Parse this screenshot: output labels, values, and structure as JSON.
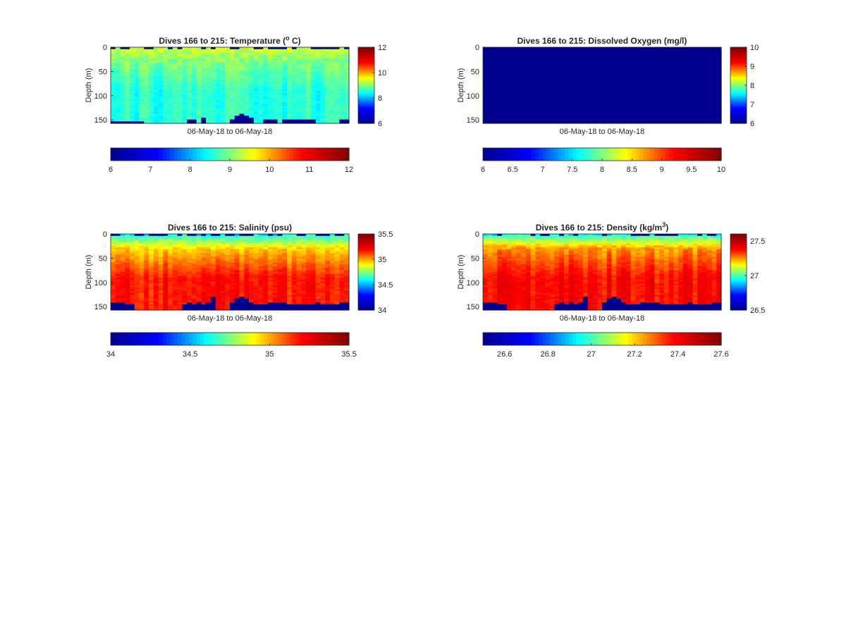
{
  "figure": {
    "colormap": [
      "#00008f",
      "#0000ff",
      "#00ffff",
      "#ffff00",
      "#ff0000",
      "#800000"
    ]
  },
  "chart_data": [
    {
      "type": "heatmap",
      "panel": "temperature",
      "title_main": "Dives 166 to 215: Temperature (",
      "title_sup": "o",
      "title_tail": " C)",
      "xlabel": "06-May-18 to 06-May-18",
      "ylabel": "Depth (m)",
      "ylim": [
        0,
        157
      ],
      "yticks": [
        "0",
        "50",
        "100",
        "150"
      ],
      "yticks_values": [
        0,
        50,
        100,
        150
      ],
      "clim": [
        6,
        12
      ],
      "side_colorbar_ticks": [
        "6",
        "8",
        "10",
        "12"
      ],
      "side_colorbar_values": [
        6,
        8,
        10,
        12
      ],
      "bottom_colorbar_ticks": [
        "6",
        "7",
        "8",
        "9",
        "10",
        "11",
        "12"
      ],
      "bottom_colorbar_values": [
        6,
        7,
        8,
        9,
        10,
        11,
        12
      ],
      "dives": 50,
      "surface_value": 9.4,
      "upper_value": 9.0,
      "lower_value": 8.6,
      "bottom_depths": [
        152,
        152,
        152,
        152,
        152,
        152,
        152,
        157,
        157,
        157,
        157,
        157,
        157,
        157,
        157,
        157,
        151,
        151,
        157,
        145,
        157,
        157,
        157,
        157,
        157,
        151,
        140,
        137,
        140,
        147,
        157,
        157,
        151,
        151,
        151,
        157,
        151,
        151,
        151,
        151,
        151,
        151,
        151,
        157,
        157,
        157,
        157,
        157,
        151,
        151
      ]
    },
    {
      "type": "heatmap",
      "panel": "oxygen",
      "title_main": "Dives 166 to 215: Dissolved Oxygen (mg/l)",
      "title_sup": "",
      "title_tail": "",
      "xlabel": "06-May-18 to 06-May-18",
      "ylabel": "Depth (m)",
      "ylim": [
        0,
        157
      ],
      "yticks": [
        "0",
        "50",
        "100",
        "150"
      ],
      "yticks_values": [
        0,
        50,
        100,
        150
      ],
      "clim": [
        6,
        10
      ],
      "side_colorbar_ticks": [
        "6",
        "7",
        "8",
        "9",
        "10"
      ],
      "side_colorbar_values": [
        6,
        7,
        8,
        9,
        10
      ],
      "bottom_colorbar_ticks": [
        "6",
        "6.5",
        "7",
        "7.5",
        "8",
        "8.5",
        "9",
        "9.5",
        "10"
      ],
      "bottom_colorbar_values": [
        6,
        6.5,
        7,
        7.5,
        8,
        8.5,
        9,
        9.5,
        10
      ],
      "dives": 50,
      "uniform_value": 6.0
    },
    {
      "type": "heatmap",
      "panel": "salinity",
      "title_main": "Dives 166 to 215: Salinity (psu)",
      "title_sup": "",
      "title_tail": "",
      "xlabel": "06-May-18 to 06-May-18",
      "ylabel": "Depth (m)",
      "ylim": [
        0,
        157
      ],
      "yticks": [
        "0",
        "50",
        "100",
        "150"
      ],
      "yticks_values": [
        0,
        50,
        100,
        150
      ],
      "clim": [
        34,
        35.5
      ],
      "side_colorbar_ticks": [
        "34",
        "34.5",
        "35",
        "35.5"
      ],
      "side_colorbar_values": [
        34,
        34.5,
        35,
        35.5
      ],
      "bottom_colorbar_ticks": [
        "34",
        "34.5",
        "35",
        "35.5"
      ],
      "bottom_colorbar_values": [
        34,
        34.5,
        35,
        35.5
      ],
      "dives": 50,
      "surface_value": 34.6,
      "upper_value": 34.95,
      "lower_value": 35.18,
      "bottom_depths": [
        143,
        143,
        143,
        147,
        147,
        157,
        157,
        157,
        157,
        157,
        157,
        157,
        157,
        157,
        157,
        147,
        143,
        147,
        143,
        147,
        143,
        131,
        157,
        157,
        157,
        143,
        135,
        131,
        135,
        143,
        147,
        147,
        147,
        143,
        143,
        143,
        140,
        147,
        147,
        147,
        147,
        147,
        147,
        143,
        147,
        147,
        147,
        147,
        143,
        143
      ]
    },
    {
      "type": "heatmap",
      "panel": "density",
      "title_main": "Dives 166 to 215: Density (kg/m",
      "title_sup": "3",
      "title_tail": ")",
      "xlabel": "06-May-18 to 06-May-18",
      "ylabel": "Depth (m)",
      "ylim": [
        0,
        157
      ],
      "yticks": [
        "0",
        "50",
        "100",
        "150"
      ],
      "yticks_values": [
        0,
        50,
        100,
        150
      ],
      "clim": [
        26.5,
        27.6
      ],
      "side_colorbar_ticks": [
        "26.5",
        "27",
        "27.5"
      ],
      "side_colorbar_values": [
        26.5,
        27,
        27.5
      ],
      "bottom_colorbar_ticks": [
        "26.6",
        "26.8",
        "27",
        "27.2",
        "27.4",
        "27.6"
      ],
      "bottom_colorbar_values": [
        26.6,
        26.8,
        27,
        27.2,
        27.4,
        27.6
      ],
      "dives": 50,
      "surface_value": 26.95,
      "upper_value": 27.25,
      "lower_value": 27.38,
      "bottom_depths": [
        143,
        143,
        143,
        147,
        147,
        157,
        157,
        157,
        157,
        157,
        157,
        157,
        157,
        157,
        157,
        147,
        143,
        147,
        143,
        147,
        143,
        131,
        157,
        157,
        157,
        143,
        135,
        131,
        135,
        143,
        147,
        147,
        147,
        143,
        143,
        143,
        140,
        147,
        147,
        147,
        147,
        147,
        147,
        143,
        147,
        147,
        147,
        147,
        143,
        143
      ]
    }
  ]
}
